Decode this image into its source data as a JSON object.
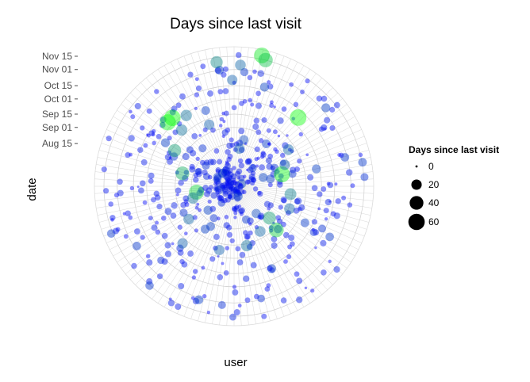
{
  "chart_data": {
    "type": "scatter",
    "coord": "polar",
    "title": "Days since last visit",
    "xlabel": "user",
    "ylabel": "date",
    "y_ticks": [
      "Aug 15",
      "Sep 01",
      "Sep 15",
      "Oct 01",
      "Oct 15",
      "Nov 01",
      "Nov 15"
    ],
    "y_tick_values": [
      "2014-08-15",
      "2014-09-01",
      "2014-09-15",
      "2014-10-01",
      "2014-10-15",
      "2014-11-01",
      "2014-11-15"
    ],
    "ylim": [
      "2014-07-01",
      "2014-11-25"
    ],
    "legend": {
      "title": "Days since last visit",
      "position": "right",
      "entries": [
        {
          "label": "0",
          "value": 0
        },
        {
          "label": "20",
          "value": 20
        },
        {
          "label": "40",
          "value": 40
        },
        {
          "label": "60",
          "value": 60
        }
      ]
    },
    "color_scale": {
      "low": "#0000ff",
      "high": "#00ff00",
      "domain": [
        0,
        60
      ]
    },
    "grid": true,
    "highlighted_points": [
      {
        "angle_deg": 12,
        "date": "2014-11-19",
        "days": 55
      },
      {
        "angle_deg": 14,
        "date": "2014-11-15",
        "days": 45
      },
      {
        "angle_deg": 43,
        "date": "2014-10-08",
        "days": 62
      },
      {
        "angle_deg": 76,
        "date": "2014-08-22",
        "days": 58
      },
      {
        "angle_deg": 136,
        "date": "2014-09-03",
        "days": 48
      },
      {
        "angle_deg": 132,
        "date": "2014-08-20",
        "days": 35
      },
      {
        "angle_deg": 261,
        "date": "2014-08-10",
        "days": 50
      },
      {
        "angle_deg": 284,
        "date": "2014-08-26",
        "days": 40
      },
      {
        "angle_deg": 301,
        "date": "2014-09-12",
        "days": 35
      },
      {
        "angle_deg": 314,
        "date": "2014-10-06",
        "days": 58
      },
      {
        "angle_deg": 318,
        "date": "2014-10-06",
        "days": 60
      },
      {
        "angle_deg": 317,
        "date": "2014-09-20",
        "days": 25
      },
      {
        "angle_deg": 326,
        "date": "2014-09-29",
        "days": 25
      },
      {
        "angle_deg": 352,
        "date": "2014-11-10",
        "days": 30
      },
      {
        "angle_deg": 3,
        "date": "2014-11-06",
        "days": 22
      },
      {
        "angle_deg": 8,
        "date": "2014-08-10",
        "days": 20
      },
      {
        "angle_deg": 56,
        "date": "2014-09-08",
        "days": 22
      },
      {
        "angle_deg": 98,
        "date": "2014-08-30",
        "days": 28
      },
      {
        "angle_deg": 112,
        "date": "2014-09-02",
        "days": 22
      },
      {
        "angle_deg": 150,
        "date": "2014-08-25",
        "days": 22
      },
      {
        "angle_deg": 168,
        "date": "2014-09-03",
        "days": 25
      },
      {
        "angle_deg": 193,
        "date": "2014-09-08",
        "days": 20
      },
      {
        "angle_deg": 234,
        "date": "2014-08-29",
        "days": 22
      },
      {
        "angle_deg": 254,
        "date": "2014-08-15",
        "days": 25
      },
      {
        "angle_deg": 222,
        "date": "2014-09-20",
        "days": 20
      },
      {
        "angle_deg": 12,
        "date": "2014-08-20",
        "days": 15
      },
      {
        "angle_deg": 67,
        "date": "2014-08-28",
        "days": 20
      },
      {
        "angle_deg": 141,
        "date": "2014-08-07",
        "days": 15
      },
      {
        "angle_deg": 338,
        "date": "2014-09-09",
        "days": 20
      },
      {
        "angle_deg": 359,
        "date": "2014-10-21",
        "days": 20
      }
    ]
  }
}
